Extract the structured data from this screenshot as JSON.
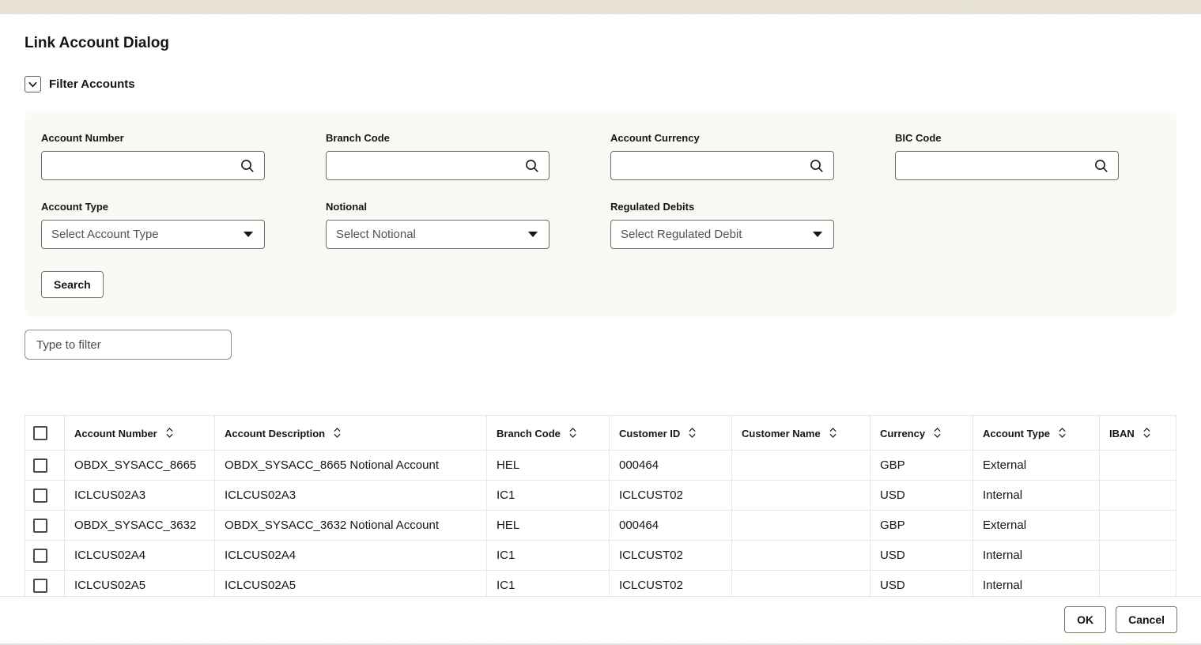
{
  "dialog": {
    "title": "Link Account Dialog"
  },
  "filter_section": {
    "label": "Filter Accounts"
  },
  "filters": {
    "fields": [
      {
        "label": "Account Number",
        "value": ""
      },
      {
        "label": "Branch Code",
        "value": ""
      },
      {
        "label": "Account Currency",
        "value": ""
      },
      {
        "label": "BIC Code",
        "value": ""
      },
      {
        "label": "Account Type",
        "selected": "Select Account Type"
      },
      {
        "label": "Notional",
        "selected": "Select Notional"
      },
      {
        "label": "Regulated Debits",
        "selected": "Select Regulated Debit"
      }
    ],
    "search_button_label": "Search"
  },
  "quick_filter": {
    "placeholder": "Type to filter"
  },
  "table": {
    "columns": [
      "Account Number",
      "Account Description",
      "Branch Code",
      "Customer ID",
      "Customer Name",
      "Currency",
      "Account Type",
      "IBAN"
    ],
    "rows": [
      [
        "OBDX_SYSACC_8665",
        "OBDX_SYSACC_8665 Notional Account",
        "HEL",
        "000464",
        "",
        "GBP",
        "External",
        ""
      ],
      [
        "ICLCUS02A3",
        "ICLCUS02A3",
        "IC1",
        "ICLCUST02",
        "",
        "USD",
        "Internal",
        ""
      ],
      [
        "OBDX_SYSACC_3632",
        "OBDX_SYSACC_3632 Notional Account",
        "HEL",
        "000464",
        "",
        "GBP",
        "External",
        ""
      ],
      [
        "ICLCUS02A4",
        "ICLCUS02A4",
        "IC1",
        "ICLCUST02",
        "",
        "USD",
        "Internal",
        ""
      ],
      [
        "ICLCUS02A5",
        "ICLCUS02A5",
        "IC1",
        "ICLCUST02",
        "",
        "USD",
        "Internal",
        ""
      ]
    ]
  },
  "footer": {
    "ok_label": "OK",
    "cancel_label": "Cancel"
  }
}
